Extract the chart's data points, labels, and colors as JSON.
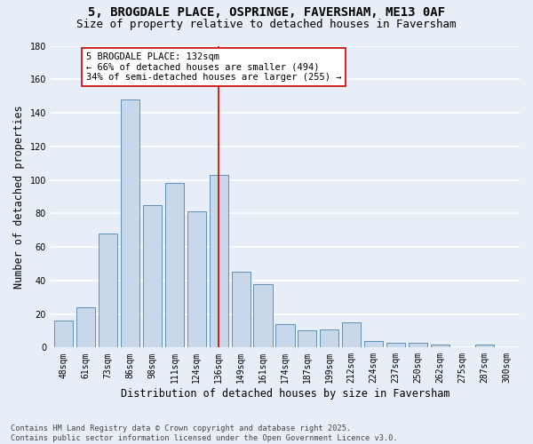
{
  "title_line1": "5, BROGDALE PLACE, OSPRINGE, FAVERSHAM, ME13 0AF",
  "title_line2": "Size of property relative to detached houses in Faversham",
  "xlabel": "Distribution of detached houses by size in Faversham",
  "ylabel": "Number of detached properties",
  "bar_labels": [
    "48sqm",
    "61sqm",
    "73sqm",
    "86sqm",
    "98sqm",
    "111sqm",
    "124sqm",
    "136sqm",
    "149sqm",
    "161sqm",
    "174sqm",
    "187sqm",
    "199sqm",
    "212sqm",
    "224sqm",
    "237sqm",
    "250sqm",
    "262sqm",
    "275sqm",
    "287sqm",
    "300sqm"
  ],
  "bar_values": [
    16,
    24,
    68,
    148,
    85,
    98,
    81,
    103,
    45,
    38,
    14,
    10,
    11,
    15,
    4,
    3,
    3,
    2,
    0,
    2,
    0
  ],
  "bar_color": "#c8d8ea",
  "bar_edgecolor": "#6090b8",
  "vline_x_index": 7,
  "vline_color": "#cc0000",
  "annotation_text": "5 BROGDALE PLACE: 132sqm\n← 66% of detached houses are smaller (494)\n34% of semi-detached houses are larger (255) →",
  "annotation_box_color": "#ffffff",
  "annotation_box_edgecolor": "#cc0000",
  "ylim": [
    0,
    180
  ],
  "yticks": [
    0,
    20,
    40,
    60,
    80,
    100,
    120,
    140,
    160,
    180
  ],
  "background_color": "#e8eef8",
  "grid_color": "#ffffff",
  "footnote": "Contains HM Land Registry data © Crown copyright and database right 2025.\nContains public sector information licensed under the Open Government Licence v3.0.",
  "title_fontsize": 10,
  "subtitle_fontsize": 9,
  "axis_label_fontsize": 8.5,
  "tick_fontsize": 7,
  "annotation_fontsize": 7.5
}
